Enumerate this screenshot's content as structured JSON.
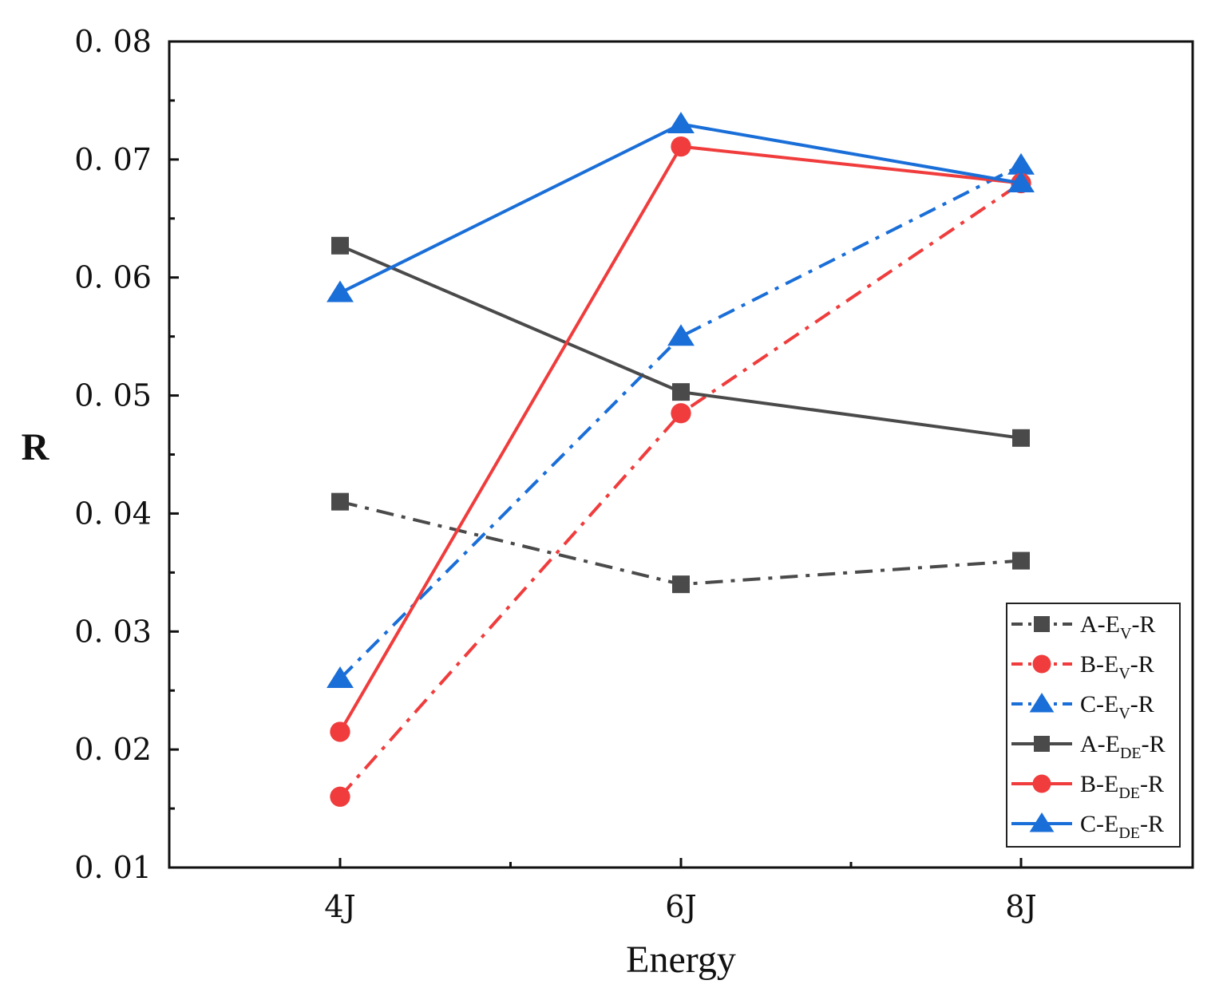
{
  "chart_data": {
    "type": "line",
    "title": "",
    "xlabel": "Energy",
    "ylabel": "R",
    "categories": [
      "4J",
      "6J",
      "8J"
    ],
    "ylim": [
      0.01,
      0.08
    ],
    "yticks": [
      0.01,
      0.02,
      0.03,
      0.04,
      0.05,
      0.06,
      0.07,
      0.08
    ],
    "ytick_labels": [
      "0. 01",
      "0. 02",
      "0. 03",
      "0. 04",
      "0. 05",
      "0. 06",
      "0. 07",
      "0. 08"
    ],
    "grid": false,
    "legend_position": "bottom-right",
    "series": [
      {
        "id": "a-ev",
        "name": "A-EV-R",
        "prefix": "A-E",
        "sub": "V",
        "suffix": "-R",
        "values": [
          0.041,
          0.034,
          0.036
        ],
        "color": "#4a4a4a",
        "marker": "square",
        "dash": "dashdot"
      },
      {
        "id": "b-ev",
        "name": "B-EV-R",
        "prefix": "B-E",
        "sub": "V",
        "suffix": "-R",
        "values": [
          0.016,
          0.0485,
          0.068
        ],
        "color": "#f03c3c",
        "marker": "circle",
        "dash": "dashdot"
      },
      {
        "id": "c-ev",
        "name": "C-EV-R",
        "prefix": "C-E",
        "sub": "V",
        "suffix": "-R",
        "values": [
          0.026,
          0.055,
          0.0695
        ],
        "color": "#1a6ed8",
        "marker": "triangle",
        "dash": "dashdot"
      },
      {
        "id": "a-ede",
        "name": "A-EDE-R",
        "prefix": "A-E",
        "sub": "DE",
        "suffix": "-R",
        "values": [
          0.0627,
          0.0503,
          0.0464
        ],
        "color": "#4a4a4a",
        "marker": "square",
        "dash": "solid"
      },
      {
        "id": "b-ede",
        "name": "B-EDE-R",
        "prefix": "B-E",
        "sub": "DE",
        "suffix": "-R",
        "values": [
          0.0215,
          0.0711,
          0.068
        ],
        "color": "#f03c3c",
        "marker": "circle",
        "dash": "solid"
      },
      {
        "id": "c-ede",
        "name": "C-EDE-R",
        "prefix": "C-E",
        "sub": "DE",
        "suffix": "-R",
        "values": [
          0.0587,
          0.073,
          0.068
        ],
        "color": "#1a6ed8",
        "marker": "triangle",
        "dash": "solid"
      }
    ]
  }
}
